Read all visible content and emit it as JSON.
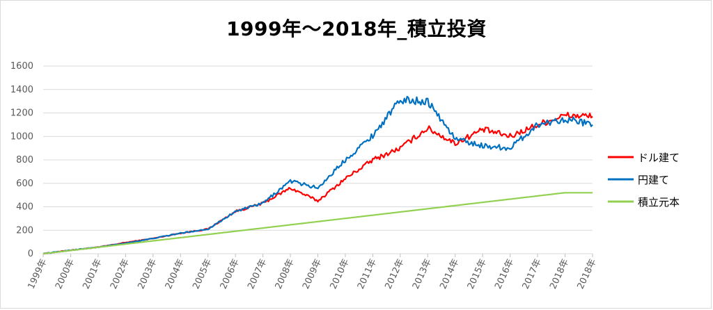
{
  "chart_data": {
    "type": "line",
    "title": "1999年～2018年_積立投資",
    "xlabel": "",
    "ylabel": "",
    "ylim": [
      0,
      1600
    ],
    "yticks": [
      0,
      200,
      400,
      600,
      800,
      1000,
      1200,
      1400,
      1600
    ],
    "grid": true,
    "legend_position": "right",
    "x": [
      "1999年",
      "2000年",
      "2001年",
      "2002年",
      "2003年",
      "2004年",
      "2005年",
      "2006年",
      "2007年",
      "2008年",
      "2009年",
      "2010年",
      "2011年",
      "2012年",
      "2013年",
      "2014年",
      "2015年",
      "2016年",
      "2017年",
      "2018年",
      "2018年"
    ],
    "series": [
      {
        "name": "ドル建て",
        "color": "#ff0000",
        "values": [
          0,
          30,
          55,
          95,
          130,
          175,
          210,
          360,
          430,
          560,
          450,
          640,
          800,
          900,
          1070,
          940,
          1060,
          1000,
          1100,
          1180,
          1170
        ]
      },
      {
        "name": "円建て",
        "color": "#0070c0",
        "values": [
          0,
          30,
          55,
          90,
          130,
          175,
          210,
          360,
          430,
          620,
          560,
          800,
          1010,
          1310,
          1300,
          980,
          920,
          900,
          1100,
          1150,
          1100
        ]
      },
      {
        "name": "積立元本",
        "color": "#92d050",
        "values": [
          0,
          27.4,
          54.7,
          82.1,
          109.5,
          136.8,
          164.2,
          191.6,
          218.9,
          246.3,
          273.7,
          301.1,
          328.4,
          355.8,
          383.2,
          410.5,
          437.9,
          465.3,
          492.6,
          520,
          520
        ]
      }
    ]
  }
}
